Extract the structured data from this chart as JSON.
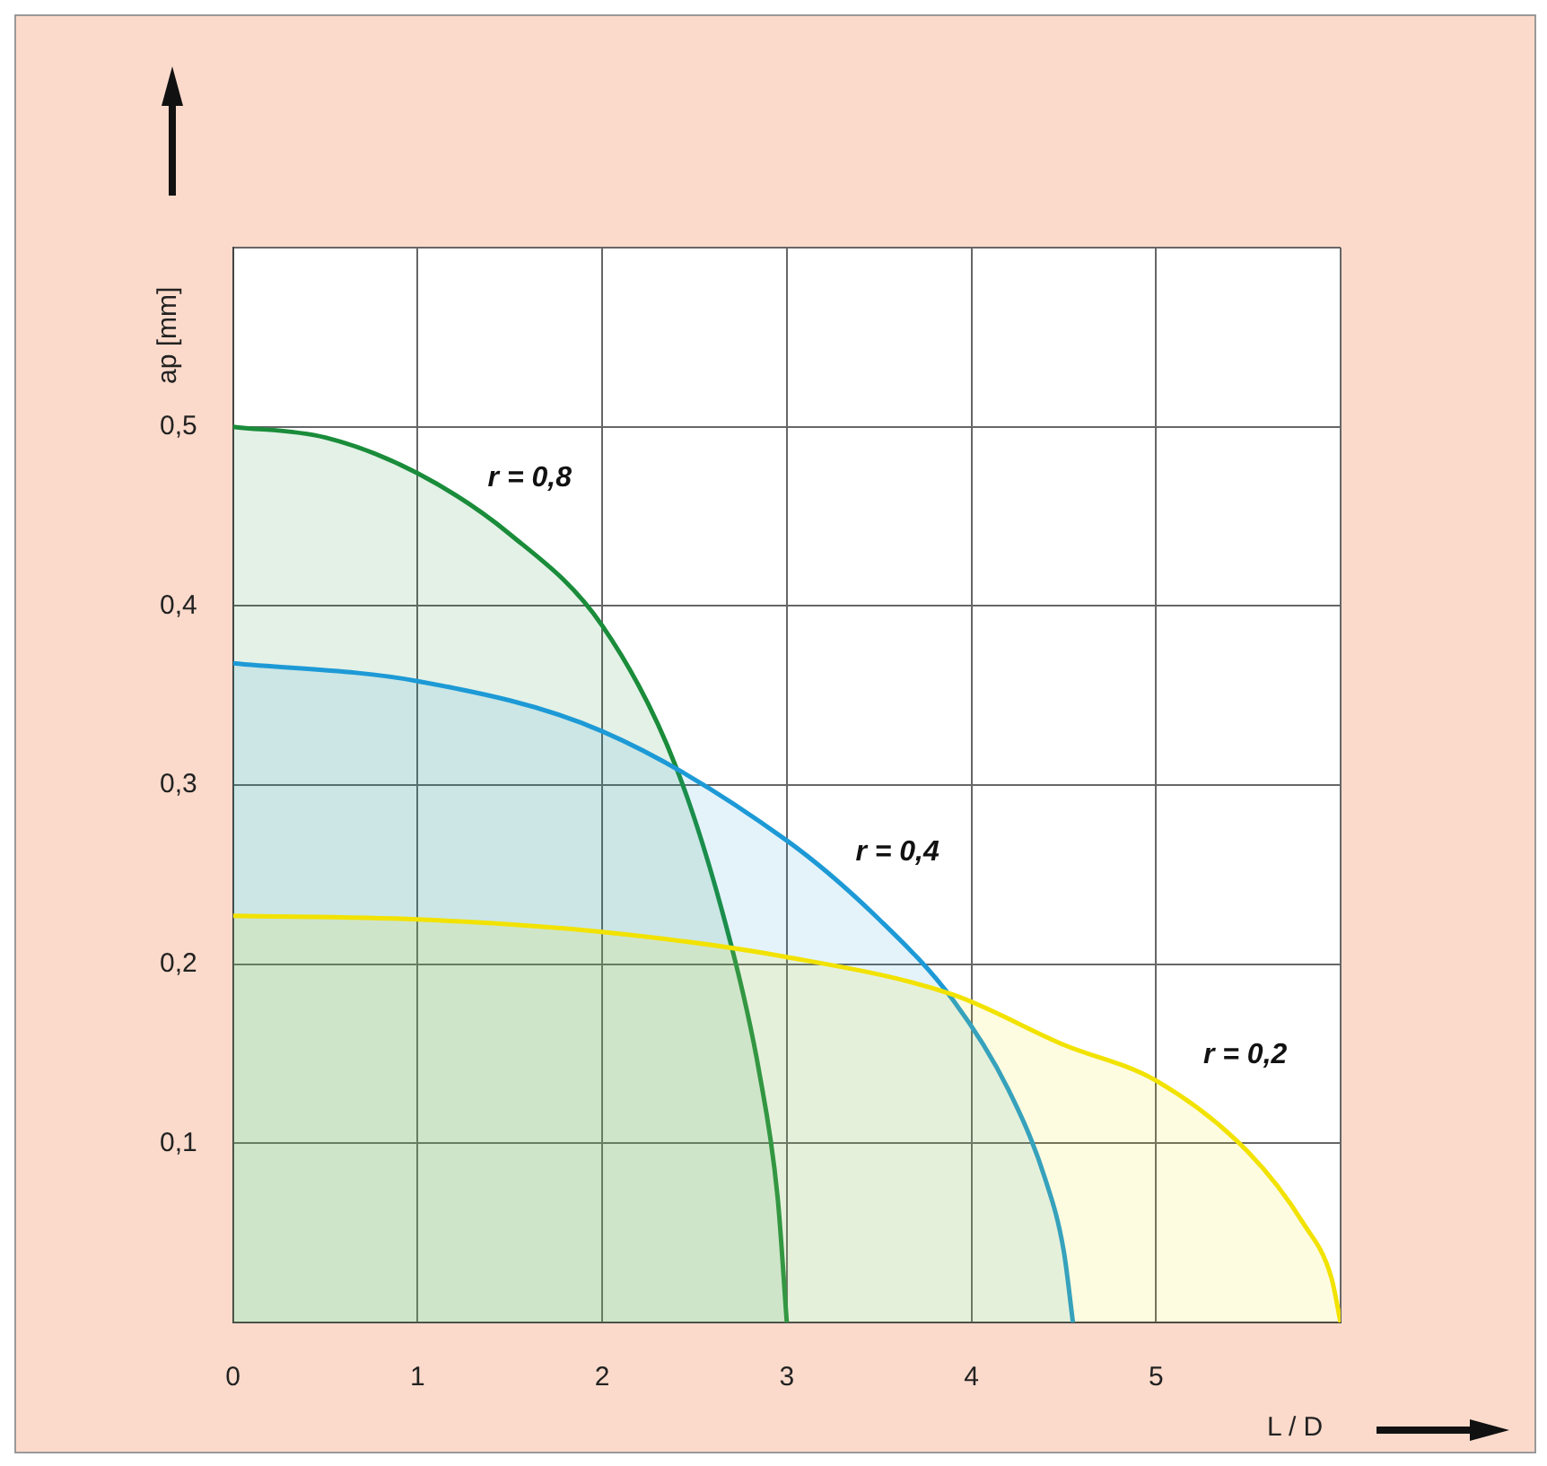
{
  "chart_data": {
    "type": "area",
    "xlabel": "L / D",
    "ylabel": "ap [mm]",
    "xlim": [
      0,
      6
    ],
    "ylim": [
      0,
      0.6
    ],
    "xticks": [
      0,
      1,
      2,
      3,
      4,
      5,
      {
        "value": 6,
        "label": null
      }
    ],
    "yticks": [
      {
        "value": 0,
        "label": null
      },
      {
        "value": 0.1,
        "label": "0,1"
      },
      {
        "value": 0.2,
        "label": "0,2"
      },
      {
        "value": 0.3,
        "label": "0,3"
      },
      {
        "value": 0.4,
        "label": "0,4"
      },
      {
        "value": 0.5,
        "label": "0,5"
      },
      {
        "value": 0.6,
        "label": null
      }
    ],
    "grid": true,
    "legend": false,
    "marker": "none",
    "line_style": "solid",
    "series": [
      {
        "name": "r = 0,2",
        "color": "#f2e200",
        "x": [
          0,
          1,
          2,
          3,
          3.9,
          4.5,
          5,
          5.5,
          5.8,
          5.95,
          6
        ],
        "values": [
          0.227,
          0.225,
          0.218,
          0.204,
          0.183,
          0.155,
          0.135,
          0.095,
          0.055,
          0.025,
          0
        ]
      },
      {
        "name": "r = 0,4",
        "color": "#1d9ad6",
        "x": [
          0,
          1,
          2,
          3,
          3.5,
          3.9,
          4.2,
          4.4,
          4.5,
          4.55
        ],
        "values": [
          0.368,
          0.358,
          0.33,
          0.269,
          0.225,
          0.18,
          0.13,
          0.08,
          0.04,
          0
        ]
      },
      {
        "name": "r = 0,8",
        "color": "#1a8c3a",
        "x": [
          0,
          0.5,
          1,
          1.5,
          2,
          2.4,
          2.7,
          2.85,
          2.95,
          3
        ],
        "values": [
          0.5,
          0.494,
          0.474,
          0.44,
          0.389,
          0.31,
          0.21,
          0.14,
          0.07,
          0
        ]
      }
    ]
  }
}
